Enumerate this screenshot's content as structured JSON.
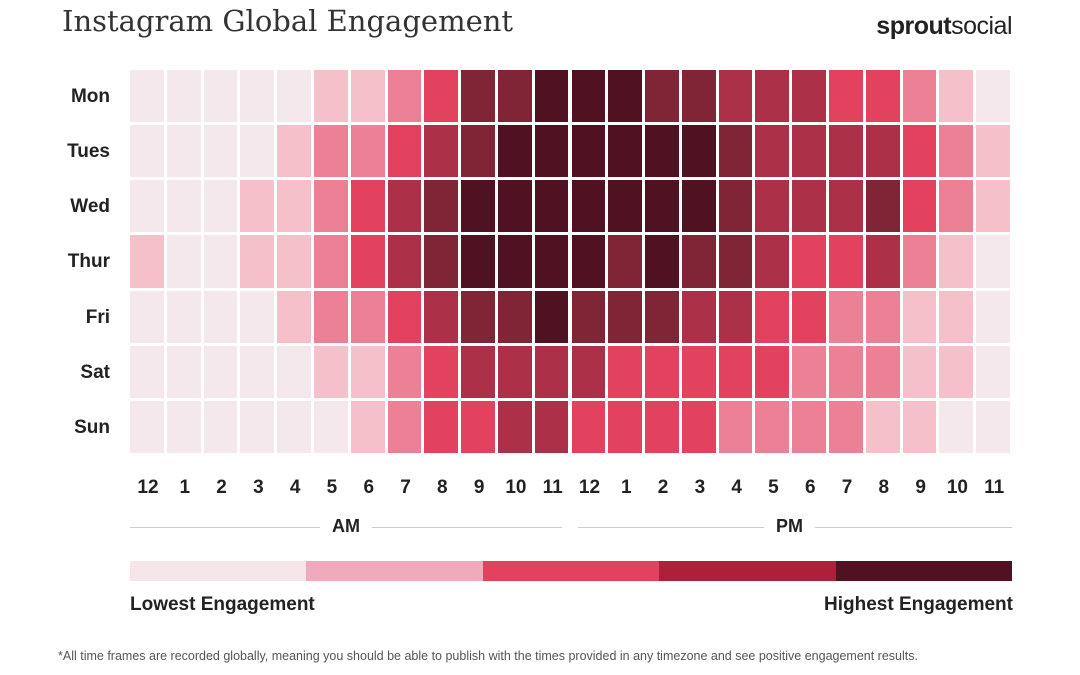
{
  "header": {
    "title": "Instagram Global Engagement",
    "logo_bold": "sprout",
    "logo_light": "social"
  },
  "chart_data": {
    "type": "heatmap",
    "title": "Instagram Global Engagement",
    "rows": [
      "Mon",
      "Tues",
      "Wed",
      "Thur",
      "Fri",
      "Sat",
      "Sun"
    ],
    "columns": [
      "12",
      "1",
      "2",
      "3",
      "4",
      "5",
      "6",
      "7",
      "8",
      "9",
      "10",
      "11",
      "12",
      "1",
      "2",
      "3",
      "4",
      "5",
      "6",
      "7",
      "8",
      "9",
      "10",
      "11"
    ],
    "period_labels": [
      "AM",
      "PM"
    ],
    "levels": {
      "min": 1,
      "max": 7,
      "colors": [
        "#f5e8ec",
        "#f5c0ca",
        "#ec8196",
        "#e2425e",
        "#ac3048",
        "#802535",
        "#501220"
      ]
    },
    "values": [
      [
        1,
        1,
        1,
        1,
        1,
        2,
        2,
        3,
        4,
        6,
        6,
        7,
        7,
        7,
        6,
        6,
        5,
        5,
        5,
        4,
        4,
        3,
        2,
        1
      ],
      [
        1,
        1,
        1,
        1,
        2,
        3,
        3,
        4,
        5,
        6,
        7,
        7,
        7,
        7,
        7,
        7,
        6,
        5,
        5,
        5,
        5,
        4,
        3,
        2
      ],
      [
        1,
        1,
        1,
        2,
        2,
        3,
        4,
        5,
        6,
        7,
        7,
        7,
        7,
        7,
        7,
        7,
        6,
        5,
        5,
        5,
        6,
        4,
        3,
        2
      ],
      [
        2,
        1,
        1,
        2,
        2,
        3,
        4,
        5,
        6,
        7,
        7,
        7,
        7,
        6,
        7,
        6,
        6,
        5,
        4,
        4,
        5,
        3,
        2,
        1
      ],
      [
        1,
        1,
        1,
        1,
        2,
        3,
        3,
        4,
        5,
        6,
        6,
        7,
        6,
        6,
        6,
        5,
        5,
        4,
        4,
        3,
        3,
        2,
        2,
        1
      ],
      [
        1,
        1,
        1,
        1,
        1,
        2,
        2,
        3,
        4,
        5,
        5,
        5,
        5,
        4,
        4,
        4,
        4,
        4,
        3,
        3,
        3,
        2,
        2,
        1
      ],
      [
        1,
        1,
        1,
        1,
        1,
        1,
        2,
        3,
        4,
        4,
        5,
        5,
        4,
        4,
        4,
        4,
        3,
        3,
        3,
        3,
        2,
        2,
        1,
        1
      ]
    ],
    "legend": {
      "colors": [
        "#f5e6ea",
        "#f0aabb",
        "#e2425e",
        "#ae1f3a",
        "#501220"
      ],
      "low_label": "Lowest Engagement",
      "high_label": "Highest Engagement"
    }
  },
  "footnote": "*All time frames are recorded globally, meaning you should be able to publish with the times provided in any timezone and see positive engagement results."
}
